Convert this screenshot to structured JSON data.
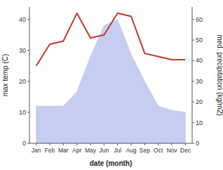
{
  "chart_data": {
    "type": "line",
    "categories": [
      "Jan",
      "Feb",
      "Mar",
      "Apr",
      "May",
      "Jun",
      "Jul",
      "Aug",
      "Sep",
      "Oct",
      "Nov",
      "Dec"
    ],
    "series": [
      {
        "type": "area",
        "axis": "y2",
        "color": "#c5cdf0",
        "values": [
          18,
          18,
          18,
          25,
          42,
          57,
          60,
          43,
          30,
          18,
          16,
          15
        ]
      },
      {
        "type": "line",
        "axis": "y",
        "color": "#c0392b",
        "values": [
          25,
          32,
          33,
          42,
          34,
          35,
          42,
          41,
          29,
          28,
          27,
          27
        ]
      }
    ],
    "xlabel": "date (month)",
    "ylabel": "max temp (C)",
    "y2label": "med. precipitation (kg/m2)",
    "ylim": [
      0,
      44
    ],
    "yticks": [
      0,
      10,
      20,
      30,
      40
    ],
    "y2lim": [
      0,
      66
    ],
    "y2ticks": [
      0,
      10,
      20,
      30,
      40,
      50,
      60
    ],
    "grid": false
  }
}
